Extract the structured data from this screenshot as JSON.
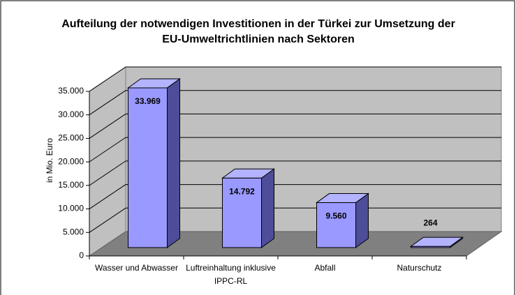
{
  "chart_data": {
    "type": "bar3d",
    "title": "Aufteilung der notwendigen Investitionen in der Türkei zur Umsetzung der EU-Umweltrichtlinien nach Sektoren",
    "y_label": "in Mio. Euro",
    "categories": [
      "Wasser und Abwasser",
      "Luftreinhaltung inklusive IPPC-RL",
      "Abfall",
      "Naturschutz"
    ],
    "values": [
      33969,
      14792,
      9560,
      264
    ],
    "value_labels": [
      "33.969",
      "14.792",
      "9.560",
      "264"
    ],
    "color": "#9999ff",
    "ylim": [
      0,
      35000
    ],
    "yticks": [
      0,
      {
        "value": 5000,
        "label": "5.000"
      },
      {
        "value": 10000,
        "label": "10.000"
      },
      {
        "value": 15000,
        "label": "15.000"
      },
      {
        "value": 20000,
        "label": "20.000"
      },
      {
        "value": 25000,
        "label": "25.000"
      },
      {
        "value": 30000,
        "label": "30.000"
      },
      {
        "value": 35000,
        "label": "35.000"
      }
    ],
    "grid": true
  }
}
